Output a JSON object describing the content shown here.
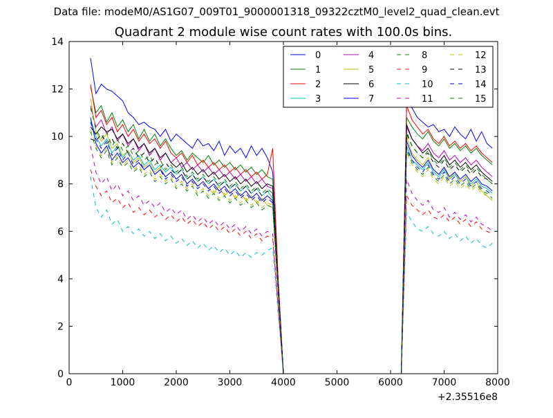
{
  "figure": {
    "supertitle": "Data file: modeM0/AS1G07_009T01_9000001318_09322cztM0_level2_quad_clean.evt"
  },
  "chart_data": {
    "type": "line",
    "title": "Quadrant 2 module wise count rates with 100.0s bins.",
    "xlabel": "",
    "ylabel": "",
    "x_offset_label": "+2.35516e8",
    "xlim": [
      0,
      8000
    ],
    "ylim": [
      0,
      14
    ],
    "x_ticks": [
      0,
      1000,
      2000,
      3000,
      4000,
      5000,
      6000,
      7000,
      8000
    ],
    "y_ticks": [
      0,
      2,
      4,
      6,
      8,
      10,
      12,
      14
    ],
    "grid": false,
    "legend_position": "top-right",
    "legend_columns": 4,
    "x": [
      400,
      500,
      600,
      700,
      800,
      900,
      1000,
      1100,
      1200,
      1300,
      1400,
      1500,
      1600,
      1700,
      1800,
      1900,
      2000,
      2100,
      2200,
      2300,
      2400,
      2500,
      2600,
      2700,
      2800,
      2900,
      3000,
      3100,
      3200,
      3300,
      3400,
      3500,
      3600,
      3700,
      3800,
      3900,
      4000,
      4100,
      4200,
      4300,
      4400,
      4500,
      4600,
      4700,
      4800,
      4900,
      5000,
      5100,
      5200,
      5300,
      5400,
      5500,
      5600,
      5700,
      5800,
      5900,
      6000,
      6100,
      6200,
      6300,
      6400,
      6500,
      6600,
      6700,
      6800,
      6900,
      7000,
      7100,
      7200,
      7300,
      7400,
      7500,
      7600,
      7700,
      7800,
      7900
    ],
    "series": [
      {
        "name": "0",
        "color": "#0000ff",
        "dash": "solid",
        "first": [
          13.3,
          11.8,
          12.2,
          12.0,
          11.9,
          11.7,
          11.5,
          11.0,
          10.8,
          10.5,
          10.6,
          10.4,
          10.3,
          10.0,
          10.3,
          9.8,
          10.1,
          9.9,
          9.7,
          9.5,
          9.9,
          9.6,
          9.7,
          9.4,
          9.8,
          9.2,
          9.6,
          9.3,
          9.5,
          9.1,
          9.6,
          9.2,
          9.5,
          9.1,
          8.5,
          4.0,
          0.0
        ],
        "second": [
          11.4,
          11.2,
          10.8,
          10.6,
          10.4,
          10.5,
          10.2,
          10.3,
          10.0,
          10.4,
          10.1,
          9.9,
          10.3,
          9.8,
          10.2,
          9.7,
          9.5
        ]
      },
      {
        "name": "1",
        "color": "#008000",
        "dash": "solid",
        "first": [
          12.1,
          11.0,
          11.3,
          10.6,
          11.0,
          10.4,
          10.7,
          10.2,
          10.5,
          9.9,
          10.3,
          9.8,
          10.1,
          9.6,
          9.9,
          9.5,
          9.2,
          9.4,
          9.0,
          9.3,
          9.1,
          8.9,
          9.2,
          8.8,
          9.0,
          8.7,
          8.9,
          8.6,
          8.8,
          8.5,
          8.7,
          8.4,
          8.6,
          8.3,
          8.2,
          3.9,
          0.0
        ],
        "second": [
          10.8,
          10.4,
          10.1,
          9.9,
          10.2,
          9.8,
          9.6,
          9.9,
          9.5,
          9.7,
          9.4,
          9.6,
          9.3,
          9.5,
          9.2,
          9.0,
          8.8
        ]
      },
      {
        "name": "2",
        "color": "#ff0000",
        "dash": "solid",
        "first": [
          12.2,
          10.8,
          11.1,
          10.5,
          10.8,
          10.2,
          10.5,
          10.0,
          10.3,
          9.8,
          10.1,
          9.7,
          9.9,
          9.5,
          9.8,
          9.3,
          9.1,
          9.3,
          8.9,
          9.2,
          8.8,
          9.0,
          8.7,
          8.9,
          8.6,
          8.8,
          8.5,
          8.7,
          8.4,
          8.6,
          8.3,
          8.5,
          8.2,
          8.4,
          9.5,
          4.1,
          0.0
        ],
        "second": [
          11.3,
          10.7,
          10.4,
          10.1,
          10.3,
          9.9,
          9.7,
          10.0,
          9.6,
          9.8,
          9.5,
          9.7,
          9.4,
          9.6,
          9.3,
          9.1,
          8.9
        ]
      },
      {
        "name": "3",
        "color": "#00bfbf",
        "dash": "solid",
        "first": [
          10.7,
          10.0,
          9.6,
          9.9,
          9.3,
          9.6,
          9.1,
          9.4,
          9.0,
          9.2,
          8.8,
          9.0,
          8.6,
          8.8,
          8.5,
          8.7,
          8.4,
          8.6,
          8.2,
          8.4,
          8.1,
          8.3,
          8.0,
          8.2,
          7.9,
          8.1,
          7.8,
          8.0,
          7.7,
          7.9,
          7.6,
          7.8,
          7.5,
          7.7,
          7.4,
          3.6,
          0.0
        ],
        "second": [
          9.6,
          9.0,
          8.8,
          8.6,
          8.9,
          8.5,
          8.3,
          8.6,
          8.2,
          8.4,
          8.1,
          8.3,
          8.0,
          8.2,
          7.9,
          7.8,
          7.6
        ]
      },
      {
        "name": "4",
        "color": "#bf00bf",
        "dash": "solid",
        "first": [
          11.3,
          10.4,
          10.7,
          10.1,
          10.4,
          9.8,
          10.1,
          9.6,
          9.9,
          9.4,
          9.7,
          9.2,
          9.5,
          9.0,
          9.3,
          8.9,
          9.1,
          8.7,
          8.9,
          8.6,
          8.8,
          8.5,
          8.7,
          8.4,
          8.6,
          8.3,
          8.5,
          8.2,
          8.4,
          8.1,
          8.3,
          8.0,
          8.2,
          7.9,
          7.8,
          3.8,
          0.0
        ],
        "second": [
          10.4,
          9.9,
          9.6,
          9.4,
          9.7,
          9.3,
          9.1,
          9.4,
          9.0,
          9.2,
          8.9,
          9.1,
          8.8,
          9.0,
          8.7,
          8.5,
          8.3
        ]
      },
      {
        "name": "5",
        "color": "#bfbf00",
        "dash": "solid",
        "first": [
          11.6,
          10.2,
          9.8,
          10.1,
          9.5,
          9.7,
          9.2,
          9.4,
          8.9,
          9.1,
          8.7,
          8.9,
          8.5,
          8.7,
          8.3,
          8.5,
          8.2,
          8.4,
          8.0,
          8.2,
          7.9,
          8.1,
          7.8,
          7.6,
          7.9,
          7.5,
          7.7,
          7.4,
          7.6,
          7.3,
          7.5,
          7.2,
          7.4,
          7.1,
          7.0,
          3.4,
          0.0
        ],
        "second": [
          10.0,
          9.3,
          9.0,
          8.8,
          9.1,
          8.6,
          8.4,
          8.7,
          8.2,
          8.5,
          8.1,
          8.3,
          7.9,
          8.1,
          7.7,
          7.5,
          7.3
        ]
      },
      {
        "name": "6",
        "color": "#000000",
        "dash": "solid",
        "first": [
          10.4,
          10.1,
          10.4,
          10.2,
          10.3,
          9.9,
          10.1,
          9.7,
          9.9,
          9.5,
          9.7,
          9.3,
          9.5,
          9.1,
          9.3,
          8.9,
          8.7,
          8.9,
          8.5,
          8.7,
          8.4,
          8.6,
          8.3,
          8.5,
          8.2,
          8.4,
          8.1,
          8.3,
          8.0,
          8.2,
          7.9,
          8.1,
          7.8,
          8.0,
          7.9,
          3.8,
          0.0
        ],
        "second": [
          10.5,
          9.9,
          9.6,
          9.3,
          9.5,
          9.1,
          8.9,
          9.2,
          8.8,
          9.0,
          8.7,
          8.9,
          8.6,
          8.8,
          8.5,
          8.3,
          8.1
        ]
      },
      {
        "name": "7",
        "color": "#0000ff",
        "dash": "solid",
        "first": [
          10.8,
          9.7,
          9.3,
          9.6,
          9.0,
          9.3,
          8.9,
          9.1,
          8.7,
          8.9,
          8.6,
          8.8,
          8.4,
          8.6,
          8.3,
          8.5,
          8.2,
          8.4,
          8.0,
          8.2,
          7.9,
          8.1,
          7.8,
          8.0,
          7.7,
          7.9,
          7.6,
          7.8,
          7.5,
          7.7,
          7.4,
          7.6,
          7.3,
          7.5,
          7.3,
          3.6,
          0.0
        ],
        "second": [
          9.8,
          9.2,
          8.9,
          8.7,
          9.0,
          8.6,
          8.4,
          8.7,
          8.3,
          8.5,
          8.2,
          8.4,
          8.1,
          8.3,
          8.0,
          7.9,
          7.7
        ]
      },
      {
        "name": "8",
        "color": "#008000",
        "dash": "dashed",
        "first": [
          10.2,
          9.5,
          9.1,
          9.4,
          8.8,
          9.1,
          8.7,
          8.9,
          8.5,
          8.7,
          8.3,
          8.5,
          8.1,
          8.3,
          8.0,
          8.2,
          7.8,
          8.0,
          7.7,
          7.9,
          7.5,
          7.7,
          7.4,
          7.6,
          7.3,
          7.5,
          7.2,
          7.4,
          7.1,
          7.3,
          7.0,
          7.2,
          6.9,
          7.1,
          7.0,
          3.5,
          0.0
        ],
        "second": [
          9.4,
          8.9,
          8.6,
          8.4,
          8.7,
          8.3,
          8.1,
          8.4,
          8.0,
          8.2,
          7.9,
          8.1,
          7.8,
          8.0,
          7.7,
          7.6,
          7.4
        ]
      },
      {
        "name": "9",
        "color": "#ff0000",
        "dash": "dashed",
        "first": [
          8.6,
          7.9,
          7.5,
          7.7,
          7.2,
          7.4,
          7.0,
          7.2,
          6.8,
          7.0,
          6.7,
          6.9,
          6.6,
          6.8,
          6.5,
          6.7,
          6.4,
          6.6,
          6.3,
          6.5,
          6.2,
          6.4,
          6.1,
          6.3,
          6.0,
          6.2,
          5.9,
          6.1,
          5.8,
          6.0,
          5.7,
          5.9,
          5.6,
          5.8,
          5.7,
          2.8,
          0.0
        ],
        "second": [
          7.5,
          7.1,
          6.9,
          6.7,
          6.9,
          6.6,
          6.5,
          6.7,
          6.4,
          6.6,
          6.3,
          6.5,
          6.2,
          6.4,
          6.1,
          6.0,
          5.9
        ]
      },
      {
        "name": "10",
        "color": "#00bfbf",
        "dash": "dashed",
        "first": [
          8.3,
          7.0,
          6.6,
          6.9,
          6.3,
          6.5,
          6.0,
          6.2,
          5.9,
          6.1,
          5.8,
          6.0,
          5.7,
          5.9,
          5.6,
          5.8,
          5.5,
          5.7,
          5.4,
          5.6,
          5.3,
          5.5,
          5.2,
          5.4,
          5.1,
          5.3,
          5.0,
          5.2,
          4.9,
          5.1,
          4.9,
          5.1,
          5.0,
          5.2,
          5.3,
          2.6,
          0.0
        ],
        "second": [
          6.8,
          6.4,
          6.1,
          6.0,
          6.2,
          5.9,
          5.8,
          6.0,
          5.7,
          5.9,
          5.6,
          5.8,
          5.5,
          5.7,
          5.4,
          5.3,
          5.5
        ]
      },
      {
        "name": "11",
        "color": "#bf00bf",
        "dash": "dashed",
        "first": [
          9.6,
          8.5,
          8.0,
          8.3,
          7.7,
          8.0,
          7.5,
          7.7,
          7.3,
          7.5,
          7.1,
          7.3,
          7.0,
          7.2,
          6.8,
          7.0,
          6.7,
          6.9,
          6.5,
          6.7,
          6.4,
          6.6,
          6.3,
          6.5,
          6.2,
          6.4,
          6.1,
          6.3,
          6.0,
          6.2,
          5.9,
          6.1,
          5.8,
          6.0,
          5.9,
          2.9,
          0.0
        ],
        "second": [
          8.2,
          7.6,
          7.3,
          7.1,
          7.3,
          6.9,
          6.8,
          7.0,
          6.6,
          6.8,
          6.5,
          6.7,
          6.4,
          6.6,
          6.3,
          6.2,
          6.0
        ]
      },
      {
        "name": "12",
        "color": "#bfbf00",
        "dash": "dashed",
        "first": [
          10.3,
          9.6,
          9.2,
          9.5,
          8.9,
          9.2,
          8.8,
          9.0,
          8.6,
          8.8,
          8.4,
          8.6,
          8.2,
          8.4,
          8.1,
          8.3,
          7.9,
          8.1,
          7.8,
          8.0,
          7.6,
          7.8,
          7.5,
          7.7,
          7.4,
          7.6,
          7.3,
          7.5,
          7.2,
          7.4,
          7.1,
          7.3,
          7.0,
          7.2,
          7.1,
          3.5,
          0.0
        ],
        "second": [
          9.3,
          8.8,
          8.5,
          8.3,
          8.6,
          8.2,
          8.0,
          8.3,
          7.9,
          8.1,
          7.8,
          8.0,
          7.7,
          7.9,
          7.6,
          7.5,
          7.3
        ]
      },
      {
        "name": "13",
        "color": "#000000",
        "dash": "dashed",
        "first": [
          9.9,
          9.8,
          10.1,
          9.7,
          9.9,
          9.5,
          9.7,
          9.3,
          9.5,
          9.1,
          9.3,
          8.9,
          9.1,
          8.7,
          8.9,
          8.6,
          8.4,
          8.6,
          8.2,
          8.4,
          8.1,
          8.3,
          8.0,
          8.2,
          7.9,
          8.1,
          7.8,
          8.0,
          7.7,
          7.9,
          7.6,
          7.8,
          7.5,
          7.7,
          7.6,
          3.7,
          0.0
        ],
        "second": [
          10.1,
          9.6,
          9.3,
          9.1,
          9.3,
          8.9,
          8.7,
          9.0,
          8.6,
          8.8,
          8.5,
          8.7,
          8.4,
          8.6,
          8.3,
          8.2,
          8.0
        ]
      },
      {
        "name": "14",
        "color": "#0000ff",
        "dash": "dashed",
        "first": [
          10.6,
          9.9,
          9.5,
          9.8,
          9.2,
          9.5,
          9.0,
          9.3,
          8.8,
          9.0,
          8.6,
          8.8,
          8.4,
          8.6,
          8.2,
          8.4,
          8.1,
          8.3,
          7.9,
          8.1,
          7.8,
          8.0,
          7.7,
          7.9,
          7.6,
          7.8,
          7.5,
          7.7,
          7.4,
          7.6,
          7.3,
          7.5,
          7.2,
          7.4,
          7.2,
          3.5,
          0.0
        ],
        "second": [
          9.5,
          9.0,
          8.7,
          8.5,
          8.8,
          8.4,
          8.2,
          8.5,
          8.1,
          8.3,
          8.0,
          8.2,
          7.9,
          8.1,
          7.8,
          7.7,
          7.5
        ]
      },
      {
        "name": "15",
        "color": "#008000",
        "dash": "dashed",
        "first": [
          11.2,
          10.3,
          9.9,
          10.2,
          9.6,
          9.9,
          9.4,
          9.6,
          9.2,
          9.4,
          9.0,
          9.2,
          8.8,
          9.0,
          8.6,
          8.8,
          8.5,
          8.7,
          8.3,
          8.5,
          8.2,
          8.4,
          8.1,
          8.3,
          8.0,
          8.2,
          7.9,
          8.1,
          7.8,
          8.0,
          7.7,
          7.9,
          7.6,
          7.8,
          7.6,
          3.7,
          0.0
        ],
        "second": [
          10.2,
          9.6,
          9.3,
          9.1,
          9.4,
          9.0,
          8.8,
          9.1,
          8.7,
          8.9,
          8.6,
          8.8,
          8.5,
          8.7,
          8.4,
          8.2,
          8.0
        ]
      }
    ]
  }
}
